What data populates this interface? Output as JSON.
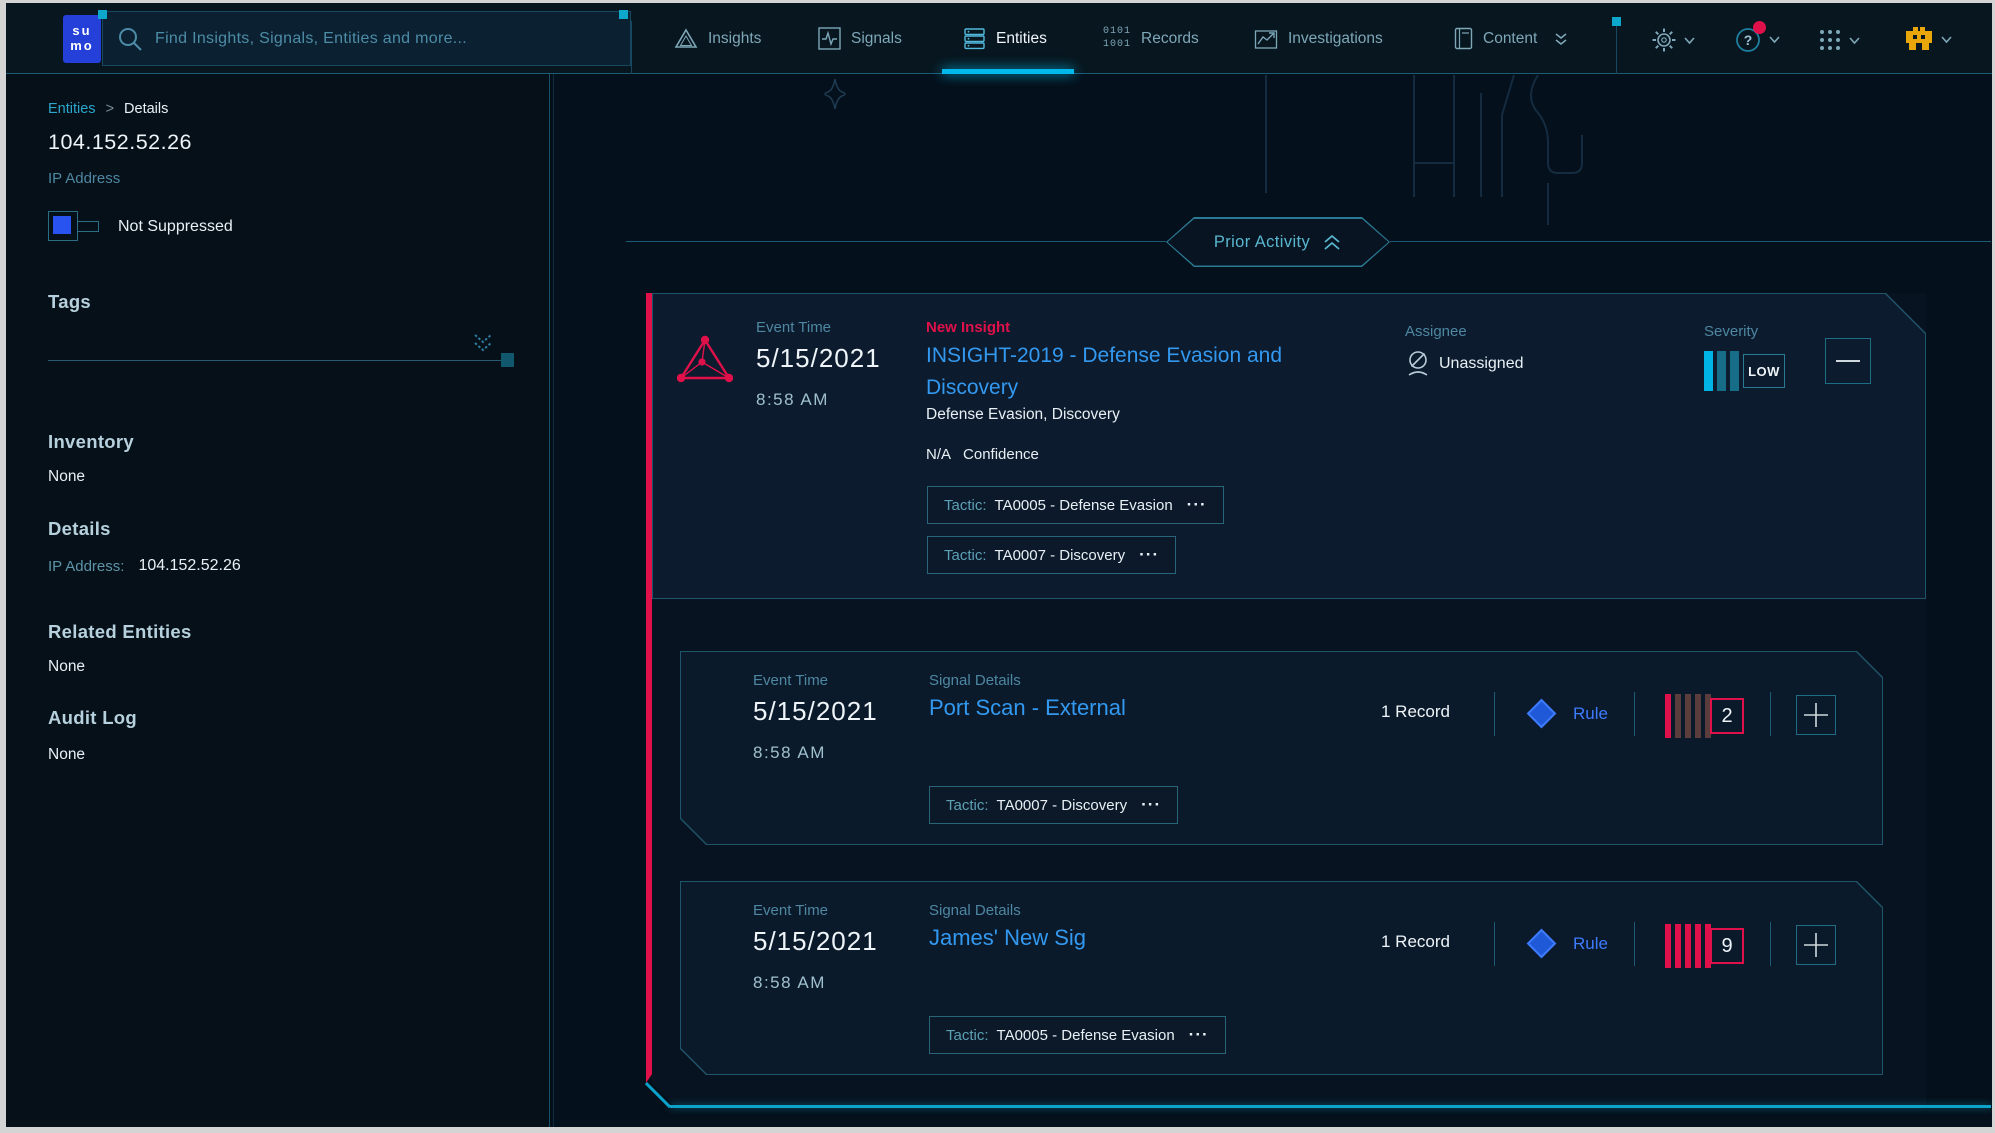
{
  "nav": {
    "logo_top": "su",
    "logo_bottom": "mo",
    "search": {
      "placeholder": "Find Insights, Signals, Entities and more..."
    },
    "tabs": [
      {
        "label": "Insights"
      },
      {
        "label": "Signals"
      },
      {
        "label": "Entities",
        "active": true
      },
      {
        "label": "Records"
      },
      {
        "label": "Investigations"
      },
      {
        "label": "Content"
      }
    ],
    "help_badge": "?"
  },
  "sidebar": {
    "breadcrumb": {
      "parent": "Entities",
      "separator": ">",
      "current": "Details"
    },
    "entity": {
      "title": "104.152.52.26",
      "type": "IP Address"
    },
    "suppression_label": "Not Suppressed",
    "tags_heading": "Tags",
    "inventory_heading": "Inventory",
    "inventory_value": "None",
    "details_heading": "Details",
    "details_field_label": "IP Address:",
    "details_field_value": "104.152.52.26",
    "related_heading": "Related Entities",
    "related_value": "None",
    "audit_heading": "Audit Log",
    "audit_value": "None"
  },
  "main": {
    "section_header": {
      "label": "Prior Activity"
    },
    "cards": [
      {
        "variant": "insight",
        "event_time_label": "Event Time",
        "date": "5/15/2021",
        "time": "8:58 AM",
        "badge": "New Insight",
        "title": "INSIGHT-2019 - Defense Evasion and Discovery",
        "tactics_summary": "Defense Evasion, Discovery",
        "confidence_value": "N/A",
        "confidence_label": "Confidence",
        "tactic_chips": [
          {
            "label": "Tactic:",
            "value": "TA0005 - Defense Evasion",
            "more": "···"
          },
          {
            "label": "Tactic:",
            "value": "TA0007 - Discovery",
            "more": "···"
          }
        ],
        "assignee_label": "Assignee",
        "assignee_value": "Unassigned",
        "severity_label": "Severity",
        "severity_value": "LOW",
        "severity_bars": {
          "total": 3,
          "active": 1,
          "palette": "cyan"
        }
      },
      {
        "variant": "signal",
        "event_time_label": "Event Time",
        "date": "5/15/2021",
        "time": "8:58 AM",
        "badge": "Signal Details",
        "title": "Port Scan - External",
        "records": "1 Record",
        "rule_label": "Rule",
        "severity_count": "2",
        "severity_bars": {
          "total": 5,
          "active": 1,
          "palette": "red"
        },
        "tactic_chips": [
          {
            "label": "Tactic:",
            "value": "TA0007 - Discovery",
            "more": "···"
          }
        ]
      },
      {
        "variant": "signal",
        "event_time_label": "Event Time",
        "date": "5/15/2021",
        "time": "8:58 AM",
        "badge": "Signal Details",
        "title": "James' New Sig",
        "records": "1 Record",
        "rule_label": "Rule",
        "severity_count": "9",
        "severity_bars": {
          "total": 5,
          "active": 5,
          "palette": "red"
        },
        "tactic_chips": [
          {
            "label": "Tactic:",
            "value": "TA0005 - Defense Evasion",
            "more": "···"
          }
        ]
      }
    ]
  },
  "colors": {
    "accent_cyan": "#00b9ea",
    "crimson": "#e0114a",
    "link_blue": "#3399f0",
    "rule_blue": "#3d7bff",
    "teal_border": "#1d5a73",
    "gold": "#e8a60a"
  }
}
